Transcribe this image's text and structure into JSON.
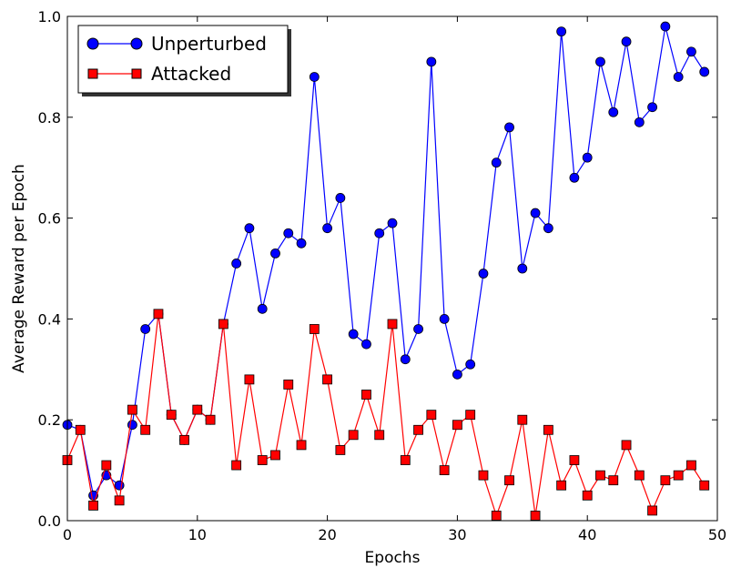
{
  "chart_data": {
    "type": "line",
    "title": "",
    "xlabel": "Epochs",
    "ylabel": "Average Reward per Epoch",
    "xlim": [
      0,
      50
    ],
    "ylim": [
      0.0,
      1.0
    ],
    "xticks": [
      "0",
      "10",
      "20",
      "30",
      "40",
      "50"
    ],
    "yticks": [
      "0.0",
      "0.2",
      "0.4",
      "0.6",
      "0.8",
      "1.0"
    ],
    "grid": false,
    "legend_position": "top-left",
    "x": [
      0,
      1,
      2,
      3,
      4,
      5,
      6,
      7,
      8,
      9,
      10,
      11,
      12,
      13,
      14,
      15,
      16,
      17,
      18,
      19,
      20,
      21,
      22,
      23,
      24,
      25,
      26,
      27,
      28,
      29,
      30,
      31,
      32,
      33,
      34,
      35,
      36,
      37,
      38,
      39,
      40,
      41,
      42,
      43,
      44,
      45,
      46,
      47,
      48,
      49
    ],
    "series": [
      {
        "name": "Unperturbed",
        "color": "#0000ff",
        "marker": "circle",
        "values": [
          0.19,
          0.18,
          0.05,
          0.09,
          0.07,
          0.19,
          0.38,
          0.41,
          0.21,
          0.16,
          0.22,
          0.2,
          0.39,
          0.51,
          0.58,
          0.42,
          0.53,
          0.57,
          0.55,
          0.88,
          0.58,
          0.64,
          0.37,
          0.35,
          0.57,
          0.59,
          0.32,
          0.38,
          0.91,
          0.4,
          0.29,
          0.31,
          0.49,
          0.71,
          0.78,
          0.5,
          0.61,
          0.58,
          0.97,
          0.68,
          0.72,
          0.91,
          0.81,
          0.95,
          0.79,
          0.82,
          0.98,
          0.88,
          0.93,
          0.89
        ]
      },
      {
        "name": "Attacked",
        "color": "#ff0000",
        "marker": "square",
        "values": [
          0.12,
          0.18,
          0.03,
          0.11,
          0.04,
          0.22,
          0.18,
          0.41,
          0.21,
          0.16,
          0.22,
          0.2,
          0.39,
          0.11,
          0.28,
          0.12,
          0.13,
          0.27,
          0.15,
          0.38,
          0.28,
          0.14,
          0.17,
          0.25,
          0.17,
          0.39,
          0.12,
          0.18,
          0.21,
          0.1,
          0.19,
          0.21,
          0.09,
          0.01,
          0.08,
          0.2,
          0.01,
          0.18,
          0.07,
          0.12,
          0.05,
          0.09,
          0.08,
          0.15,
          0.09,
          0.02,
          0.08,
          0.09,
          0.11,
          0.07
        ]
      }
    ]
  }
}
